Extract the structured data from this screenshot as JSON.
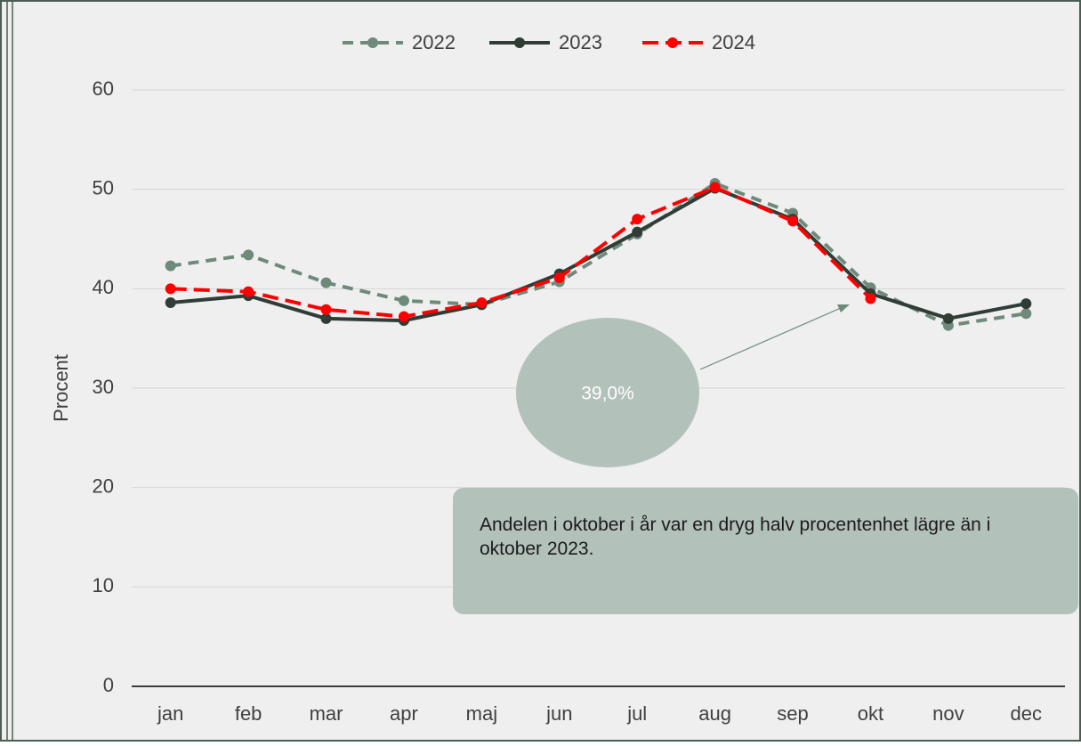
{
  "chart_data": {
    "type": "line",
    "y_label": "Procent",
    "categories": [
      "jan",
      "feb",
      "mar",
      "apr",
      "maj",
      "jun",
      "jul",
      "aug",
      "sep",
      "okt",
      "nov",
      "dec"
    ],
    "series": [
      {
        "name": "2022",
        "color": "#6e8a7a",
        "dash": "dashed",
        "values": [
          42.3,
          43.4,
          40.6,
          38.8,
          38.4,
          40.7,
          45.5,
          50.6,
          47.6,
          40.1,
          36.3,
          37.5
        ]
      },
      {
        "name": "2023",
        "color": "#2f3d36",
        "dash": "solid",
        "values": [
          38.6,
          39.3,
          37.0,
          36.8,
          38.4,
          41.5,
          45.7,
          50.1,
          47.0,
          39.5,
          37.0,
          38.5
        ]
      },
      {
        "name": "2024",
        "color": "#ff0000",
        "dash": "dashed",
        "values": [
          40.0,
          39.7,
          37.9,
          37.2,
          38.6,
          41.1,
          47.0,
          50.2,
          46.8,
          39.0,
          null,
          null
        ]
      }
    ],
    "ylim": [
      0,
      60
    ],
    "yticks": [
      0,
      10,
      20,
      30,
      40,
      50,
      60
    ],
    "grid": true,
    "annotations": [
      "39,0%",
      "Andelen i oktober i år var en dryg halv procentenhet lägre än i oktober 2023."
    ]
  }
}
